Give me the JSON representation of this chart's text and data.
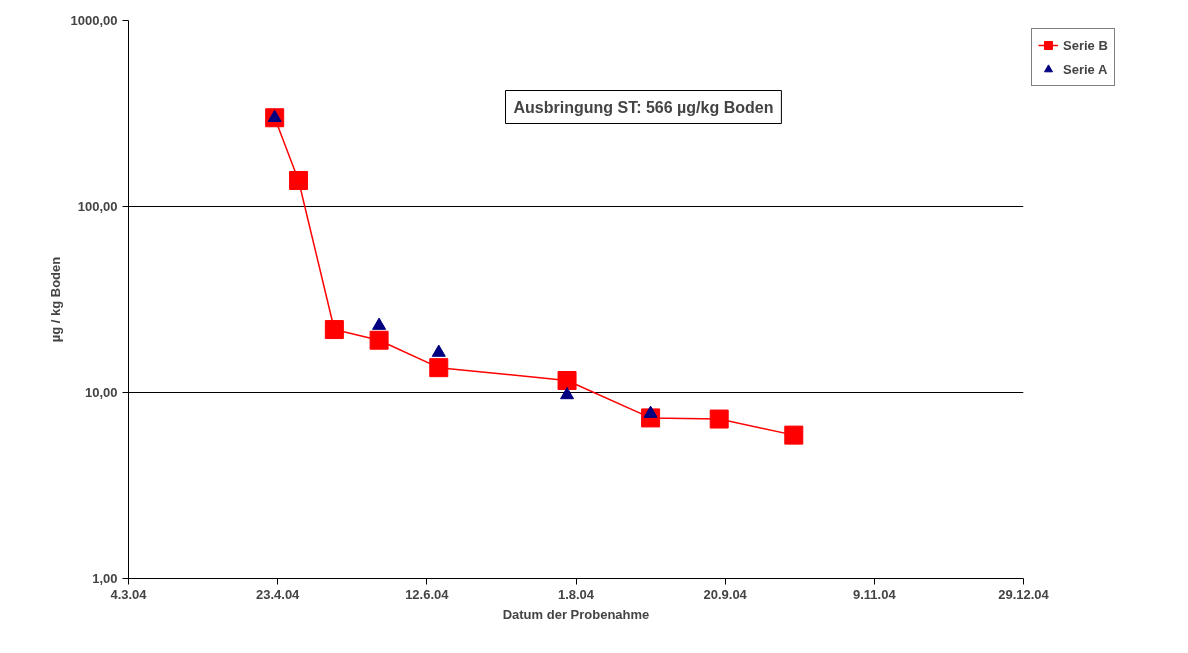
{
  "chart_data": {
    "type": "line",
    "xlabel": "Datum der Probenahme",
    "ylabel": "µg / kg Boden",
    "annotations": [
      "Ausbringung ST: 566 µg/kg Boden"
    ],
    "log": "y",
    "grid": "y",
    "legend": "right",
    "xlim": [
      "2004-03-04",
      "2004-12-29"
    ],
    "xticks": [
      {
        "value": "2004-03-04",
        "label": "4.3.04"
      },
      {
        "value": "2004-04-23",
        "label": "23.4.04"
      },
      {
        "value": "2004-06-12",
        "label": "12.6.04"
      },
      {
        "value": "2004-08-01",
        "label": "1.8.04"
      },
      {
        "value": "2004-09-20",
        "label": "20.9.04"
      },
      {
        "value": "2004-11-09",
        "label": "9.11.04"
      },
      {
        "value": "2004-12-29",
        "label": "29.12.04"
      }
    ],
    "ylim": [
      1,
      1000
    ],
    "yticks": [
      {
        "value": 1,
        "label": "1,00"
      },
      {
        "value": 10,
        "label": "10,00"
      },
      {
        "value": 100,
        "label": "100,00"
      },
      {
        "value": 1000,
        "label": "1000,00"
      }
    ],
    "series": [
      {
        "name": "Serie B",
        "marker": "square",
        "color": "#ff0000",
        "x": [
          "2004-04-22",
          "2004-04-30",
          "2004-05-12",
          "2004-05-27",
          "2004-06-16",
          "2004-07-29",
          "2004-08-26",
          "2004-09-18",
          "2004-10-13"
        ],
        "values": [
          300,
          138,
          21.8,
          19.1,
          13.6,
          11.6,
          7.3,
          7.2,
          5.9
        ]
      },
      {
        "name": "Serie A",
        "type": "scatter",
        "marker": "triangle",
        "color": "#000080",
        "x": [
          "2004-04-22",
          "2004-05-27",
          "2004-06-16",
          "2004-07-29",
          "2004-08-26"
        ],
        "values": [
          300,
          22.9,
          16.4,
          9.7,
          7.7
        ]
      }
    ]
  }
}
